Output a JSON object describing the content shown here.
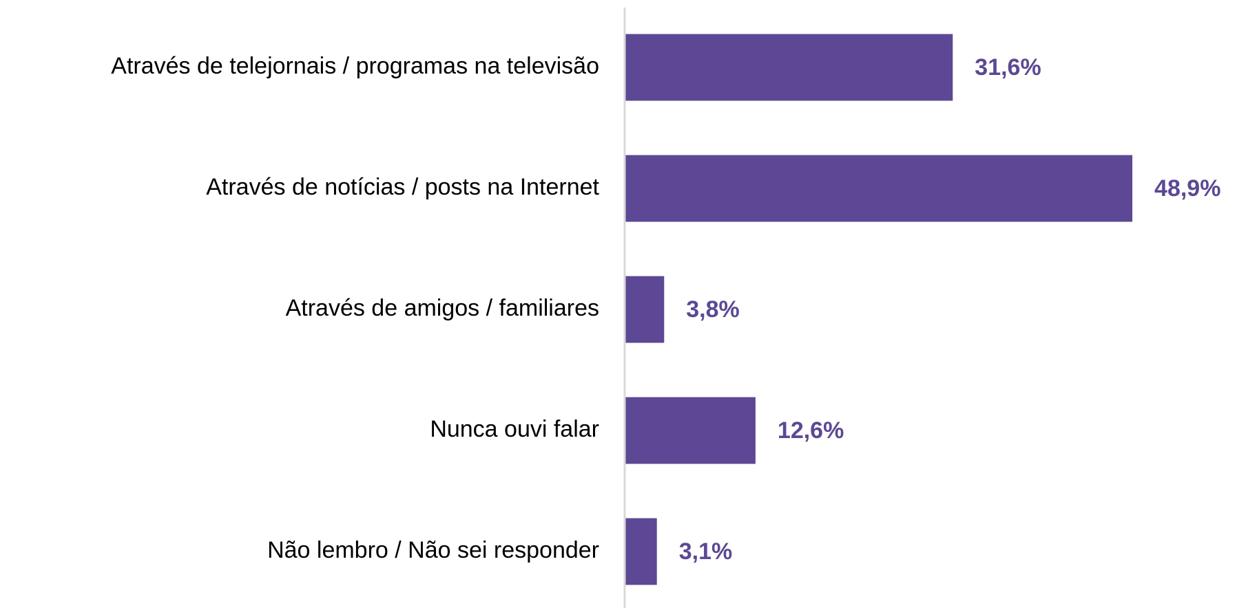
{
  "chart_data": {
    "type": "hbar",
    "categories": [
      "Através de telejornais / programas na televisão",
      "Através de notícias / posts na Internet",
      "Através de amigos / familiares",
      "Nunca ouvi falar",
      "Não lembro / Não sei responder"
    ],
    "values": [
      31.6,
      48.9,
      3.8,
      12.6,
      3.1
    ],
    "value_labels": [
      "31,6%",
      "48,9%",
      "3,8%",
      "12,6%",
      "3,1%"
    ],
    "color": "#5c4894",
    "xlim": [
      0,
      55
    ]
  }
}
